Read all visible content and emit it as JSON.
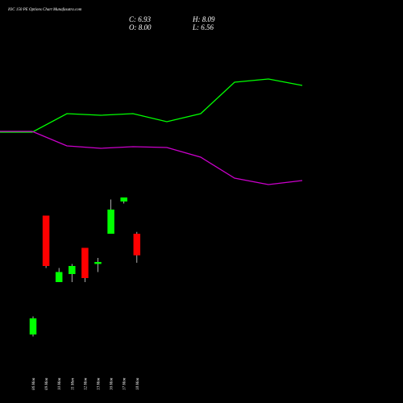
{
  "title": "IOC 150 PE Options Chart Munafasutra.com",
  "ohlc": {
    "c": "C: 6.93",
    "h": "H: 8.09",
    "o": "O: 8.00",
    "l": "L: 6.56"
  },
  "chart_data": [
    {
      "type": "line",
      "series": [
        {
          "color": "#00ff00",
          "values": [
            0.16,
            0.16,
            0.39,
            0.37,
            0.39,
            0.29,
            0.39,
            0.78,
            0.82,
            0.74
          ]
        },
        {
          "color": "#cc00cc",
          "values": [
            0.17,
            0.17,
            -0.01,
            -0.04,
            -0.02,
            -0.03,
            -0.15,
            -0.41,
            -0.49,
            -0.44
          ]
        }
      ],
      "ylim": [
        -1,
        1
      ]
    },
    {
      "type": "candlestick",
      "categories": [
        "06 Mon",
        "09 Mon",
        "10 Mon",
        "11 Mon",
        "12 Mon",
        "13 Mon",
        "16 Mon",
        "17 Mon",
        "18 Mon"
      ],
      "candles": [
        {
          "open": 3.0,
          "high": 3.9,
          "low": 2.9,
          "close": 3.8
        },
        {
          "open": 8.9,
          "high": 8.9,
          "low": 6.3,
          "close": 6.4
        },
        {
          "open": 5.6,
          "high": 6.3,
          "low": 5.6,
          "close": 6.1
        },
        {
          "open": 6.0,
          "high": 6.5,
          "low": 5.6,
          "close": 6.4
        },
        {
          "open": 7.3,
          "high": 7.3,
          "low": 5.6,
          "close": 5.8
        },
        {
          "open": 6.5,
          "high": 6.8,
          "low": 6.1,
          "close": 6.6
        },
        {
          "open": 8.0,
          "high": 9.7,
          "low": 8.0,
          "close": 9.2
        },
        {
          "open": 9.6,
          "high": 9.8,
          "low": 9.5,
          "close": 9.8
        },
        {
          "open": 8.0,
          "high": 8.09,
          "low": 6.56,
          "close": 6.93
        }
      ],
      "up_color": "#00ff00",
      "down_color": "#ff0000",
      "ylim": [
        2,
        10
      ]
    }
  ]
}
